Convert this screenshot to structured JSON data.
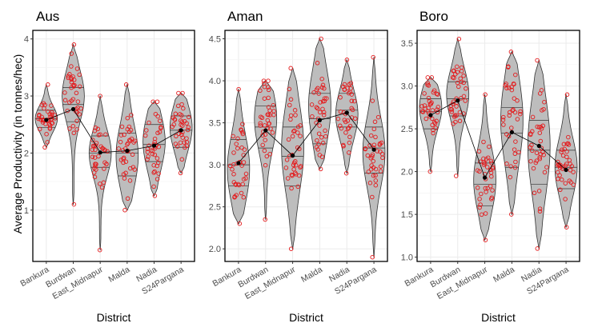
{
  "colors": {
    "violin_fill": "#bdbdbd",
    "violin_stroke": "#333333",
    "point": "#e41a1c",
    "mean": "#000000",
    "grid": "#ebebeb",
    "panel_border": "#000000"
  },
  "y_axis_label": "Average Productivity (in tonnes/hec)",
  "chart_data": [
    {
      "type": "violin",
      "title": "Aus",
      "xlabel": "District",
      "ylabel": "Average Productivity (in tonnes/hec)",
      "categories": [
        "Bankura",
        "Burdwan",
        "East_Midnapur",
        "Malda",
        "Nadia",
        "S24Pargana"
      ],
      "ylim": [
        0.1,
        4.15
      ],
      "yticks": [
        1,
        2,
        3,
        4
      ],
      "grid": true,
      "violins": [
        {
          "min": 2.1,
          "max": 3.2,
          "q1": 2.45,
          "median": 2.6,
          "q3": 2.75,
          "mode": 2.6
        },
        {
          "min": 1.1,
          "max": 3.9,
          "q1": 2.55,
          "median": 2.85,
          "q3": 3.15,
          "mode": 3.0
        },
        {
          "min": 0.3,
          "max": 3.0,
          "q1": 1.75,
          "median": 2.0,
          "q3": 2.3,
          "mode": 2.0
        },
        {
          "min": 1.0,
          "max": 3.2,
          "q1": 1.6,
          "median": 2.0,
          "q3": 2.35,
          "mode": 1.95
        },
        {
          "min": 1.25,
          "max": 2.9,
          "q1": 1.85,
          "median": 2.15,
          "q3": 2.5,
          "mode": 2.2
        },
        {
          "min": 1.65,
          "max": 3.05,
          "q1": 2.1,
          "median": 2.4,
          "q3": 2.65,
          "mode": 2.45
        }
      ],
      "means": [
        2.58,
        2.77,
        2.01,
        2.04,
        2.13,
        2.4
      ]
    },
    {
      "type": "violin",
      "title": "Aman",
      "xlabel": "District",
      "ylabel": "",
      "categories": [
        "Bankura",
        "Burdwan",
        "East_Midnapur",
        "Malda",
        "Nadia",
        "S24Pargana"
      ],
      "ylim": [
        1.85,
        4.6
      ],
      "yticks": [
        2.0,
        2.5,
        3.0,
        3.5,
        4.0,
        4.5
      ],
      "grid": true,
      "violins": [
        {
          "min": 2.3,
          "max": 3.9,
          "q1": 2.75,
          "median": 3.0,
          "q3": 3.3,
          "mode": 2.95
        },
        {
          "min": 2.35,
          "max": 4.0,
          "q1": 3.2,
          "median": 3.45,
          "q3": 3.7,
          "mode": 3.55
        },
        {
          "min": 2.0,
          "max": 4.15,
          "q1": 2.75,
          "median": 3.1,
          "q3": 3.45,
          "mode": 3.2
        },
        {
          "min": 2.95,
          "max": 4.5,
          "q1": 3.25,
          "median": 3.55,
          "q3": 3.85,
          "mode": 3.7
        },
        {
          "min": 2.9,
          "max": 4.25,
          "q1": 3.45,
          "median": 3.65,
          "q3": 3.85,
          "mode": 3.6
        },
        {
          "min": 1.9,
          "max": 4.28,
          "q1": 2.9,
          "median": 3.2,
          "q3": 3.45,
          "mode": 3.15
        }
      ],
      "means": [
        3.02,
        3.41,
        3.11,
        3.53,
        3.62,
        3.18
      ]
    },
    {
      "type": "violin",
      "title": "Boro",
      "xlabel": "District",
      "ylabel": "",
      "categories": [
        "Bankura",
        "Burdwan",
        "East_Midnapur",
        "Malda",
        "Nadia",
        "S24Pargana"
      ],
      "ylim": [
        0.95,
        3.65
      ],
      "yticks": [
        1.0,
        1.5,
        2.0,
        2.5,
        3.0,
        3.5
      ],
      "grid": true,
      "violins": [
        {
          "min": 2.0,
          "max": 3.1,
          "q1": 2.5,
          "median": 2.7,
          "q3": 2.85,
          "mode": 2.75
        },
        {
          "min": 1.95,
          "max": 3.55,
          "q1": 2.65,
          "median": 2.85,
          "q3": 3.05,
          "mode": 2.9
        },
        {
          "min": 1.2,
          "max": 2.9,
          "q1": 1.6,
          "median": 1.85,
          "q3": 2.1,
          "mode": 1.9
        },
        {
          "min": 1.5,
          "max": 3.4,
          "q1": 2.05,
          "median": 2.45,
          "q3": 2.75,
          "mode": 2.6
        },
        {
          "min": 1.1,
          "max": 3.3,
          "q1": 1.85,
          "median": 2.25,
          "q3": 2.6,
          "mode": 2.3
        },
        {
          "min": 1.35,
          "max": 2.9,
          "q1": 1.8,
          "median": 2.05,
          "q3": 2.25,
          "mode": 2.05
        }
      ],
      "means": [
        2.66,
        2.83,
        1.93,
        2.46,
        2.3,
        2.02
      ]
    }
  ]
}
